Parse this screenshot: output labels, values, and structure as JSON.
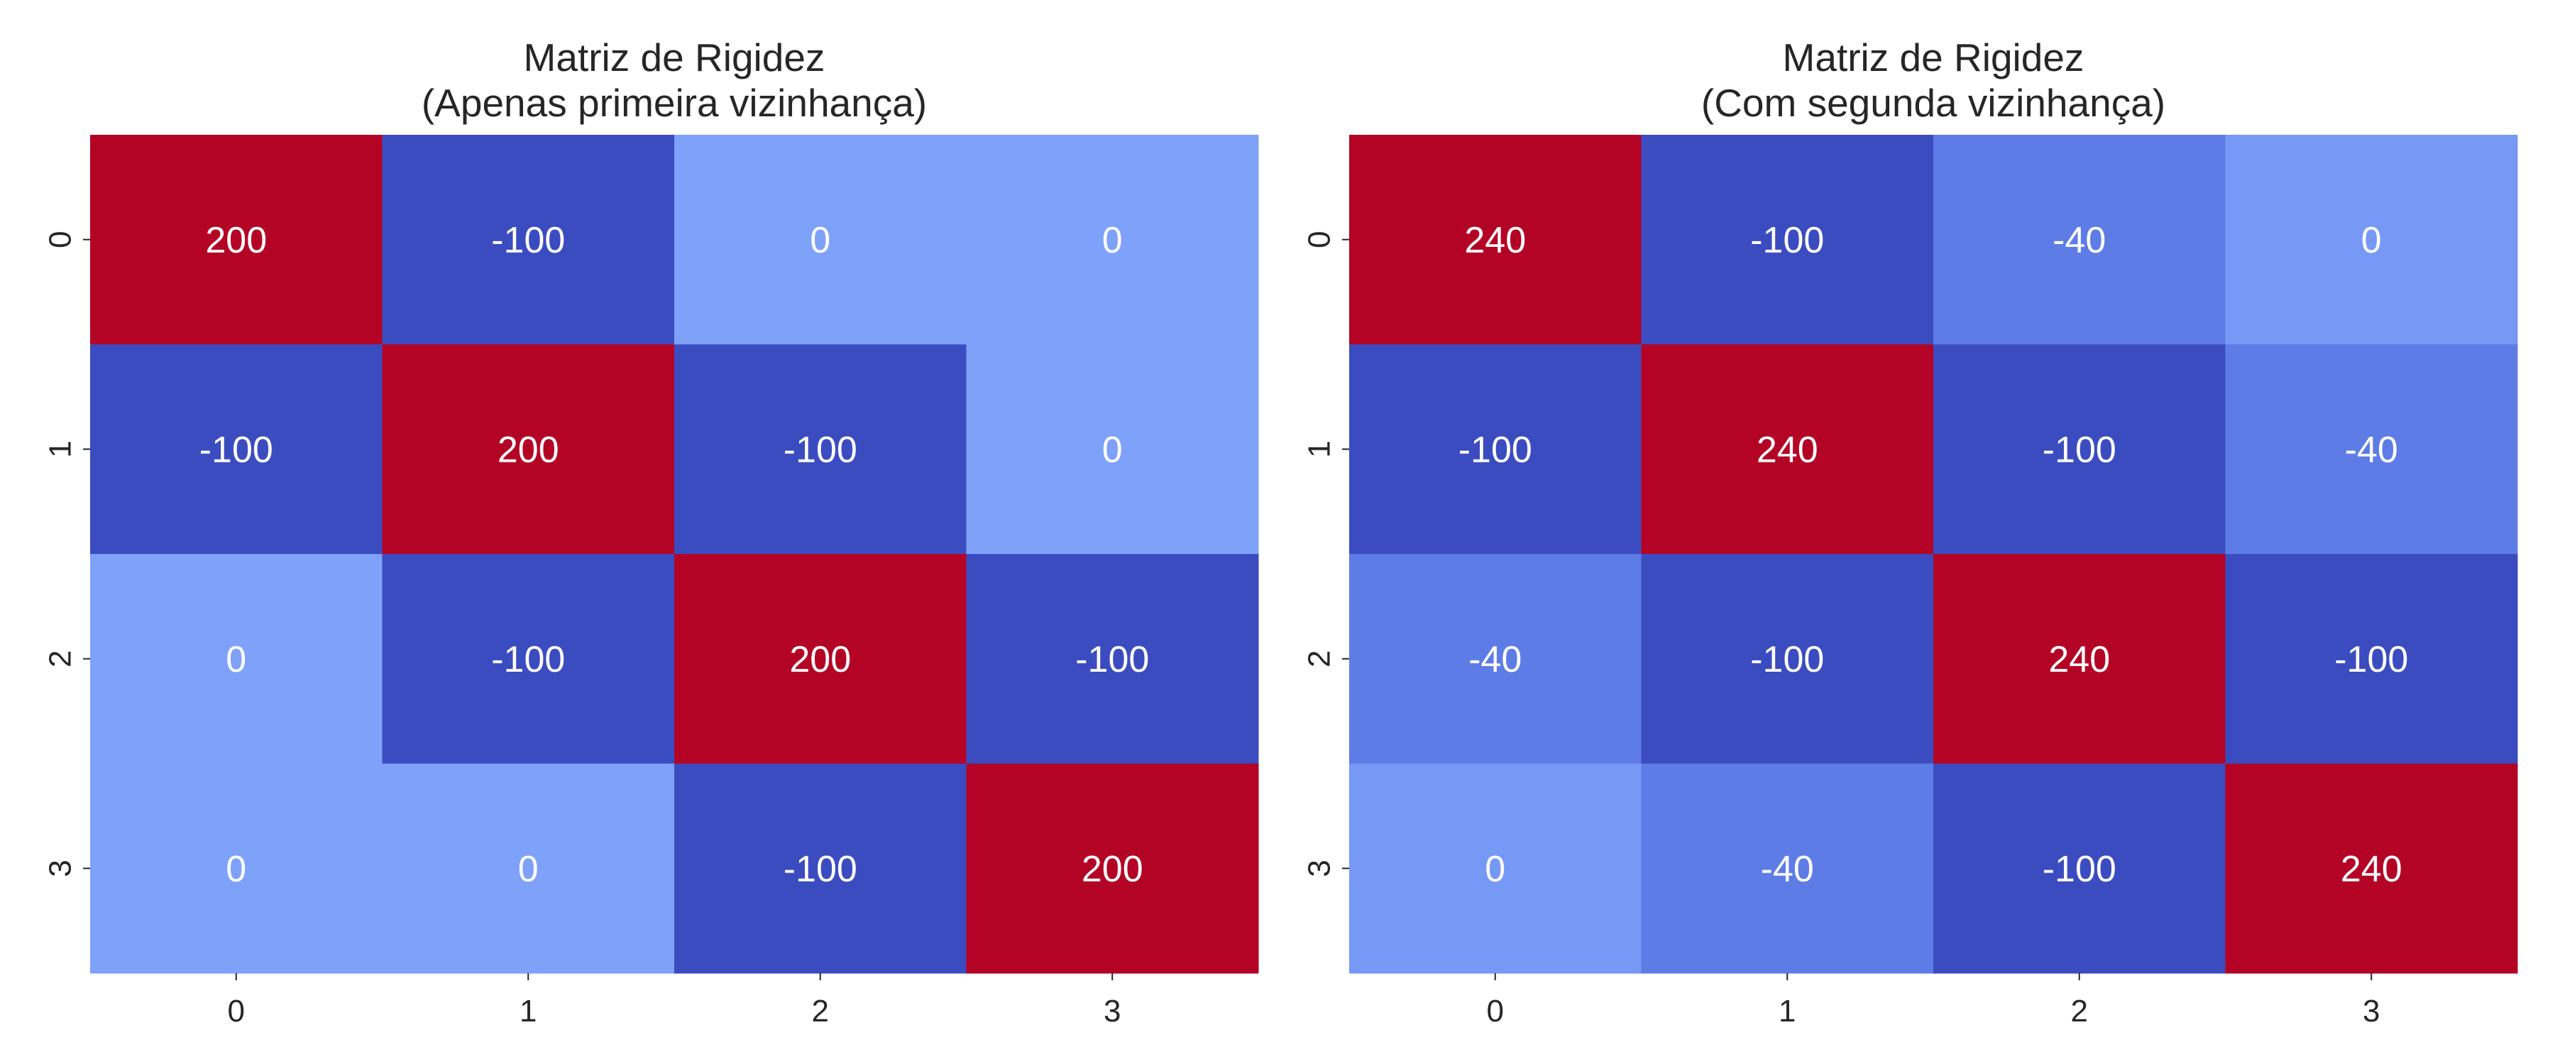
{
  "chart_data": [
    {
      "type": "heatmap",
      "title_lines": [
        "Matriz de Rigidez",
        "(Apenas primeira vizinhança)"
      ],
      "xlabel": "",
      "ylabel": "",
      "x_ticks": [
        "0",
        "1",
        "2",
        "3"
      ],
      "y_ticks": [
        "0",
        "1",
        "2",
        "3"
      ],
      "matrix": [
        [
          200,
          -100,
          0,
          0
        ],
        [
          -100,
          200,
          -100,
          0
        ],
        [
          0,
          -100,
          200,
          -100
        ],
        [
          0,
          0,
          -100,
          200
        ]
      ],
      "colormap": "coolwarm",
      "vmin": -100,
      "vmax": 200,
      "annotations": true,
      "colorbar": false,
      "grid": false
    },
    {
      "type": "heatmap",
      "title_lines": [
        "Matriz de Rigidez",
        "(Com segunda vizinhança)"
      ],
      "xlabel": "",
      "ylabel": "",
      "x_ticks": [
        "0",
        "1",
        "2",
        "3"
      ],
      "y_ticks": [
        "0",
        "1",
        "2",
        "3"
      ],
      "matrix": [
        [
          240,
          -100,
          -40,
          0
        ],
        [
          -100,
          240,
          -100,
          -40
        ],
        [
          -40,
          -100,
          240,
          -100
        ],
        [
          0,
          -40,
          -100,
          240
        ]
      ],
      "colormap": "coolwarm",
      "vmin": -100,
      "vmax": 240,
      "annotations": true,
      "colorbar": false,
      "grid": false
    }
  ]
}
